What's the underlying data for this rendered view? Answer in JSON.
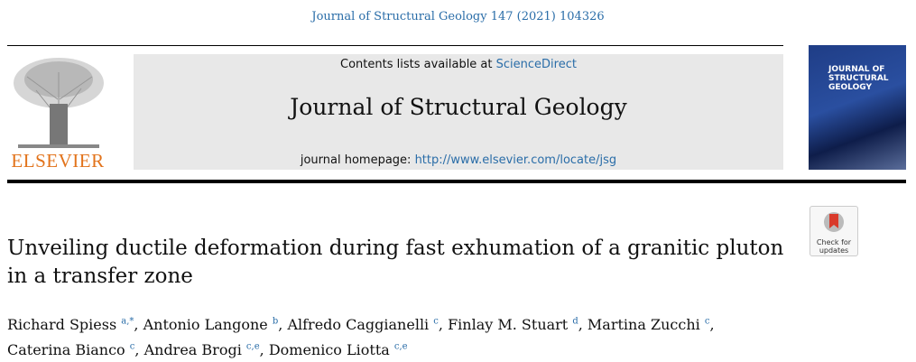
{
  "citation": "Journal of Structural Geology 147 (2021) 104326",
  "header": {
    "contents_label": "Contents lists available at",
    "contents_link": "ScienceDirect",
    "journal": "Journal of Structural Geology",
    "homepage_label": "journal homepage:",
    "homepage_url": "http://www.elsevier.com/locate/jsg"
  },
  "publisher": "ELSEVIER",
  "cover": {
    "title_lines": [
      "JOURNAL OF",
      "STRUCTURAL",
      "GEOLOGY"
    ]
  },
  "badge": {
    "lines": [
      "Check for",
      "updates"
    ]
  },
  "article": {
    "title": "Unveiling ductile deformation during fast exhumation of a granitic pluton in a transfer zone",
    "authors": [
      {
        "name": "Richard Spiess",
        "aff": "a,*",
        "sep": ","
      },
      {
        "name": "Antonio Langone",
        "aff": "b",
        "sep": ","
      },
      {
        "name": "Alfredo Caggianelli",
        "aff": "c",
        "sep": ","
      },
      {
        "name": "Finlay M. Stuart",
        "aff": "d",
        "sep": ","
      },
      {
        "name": "Martina Zucchi",
        "aff": "c",
        "sep": ","
      },
      {
        "name": "Caterina Bianco",
        "aff": "c",
        "sep": ","
      },
      {
        "name": "Andrea Brogi",
        "aff": "c,e",
        "sep": ","
      },
      {
        "name": "Domenico Liotta",
        "aff": "c,e"
      }
    ]
  }
}
